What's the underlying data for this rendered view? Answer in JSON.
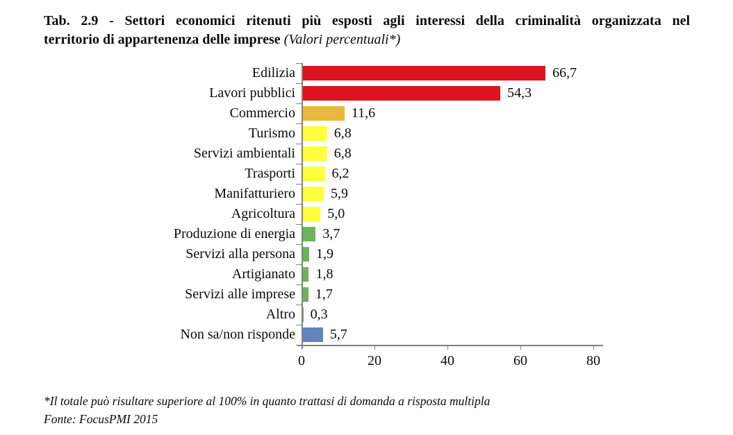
{
  "title": {
    "line1": "Tab. 2.9 - Settori economici ritenuti più esposti agli interessi della criminalità organizzata nel",
    "line2_bold": "territorio di appartenenza delle imprese ",
    "line2_italic": "(Valori percentuali*)"
  },
  "chart_data": {
    "type": "bar",
    "orientation": "horizontal",
    "title": "Settori economici ritenuti più esposti agli interessi della criminalità organizzata nel territorio di appartenenza delle imprese (Valori percentuali*)",
    "xlabel": "",
    "ylabel": "",
    "xlim": [
      0,
      80
    ],
    "x_ticks": [
      0,
      20,
      40,
      60,
      80
    ],
    "grid": false,
    "legend": "none",
    "categories": [
      "Edilizia",
      "Lavori pubblici",
      "Commercio",
      "Turismo",
      "Servizi ambientali",
      "Trasporti",
      "Manifatturiero",
      "Agricoltura",
      "Produzione di energia",
      "Servizi alla persona",
      "Artigianato",
      "Servizi alle imprese",
      "Altro",
      "Non sa/non risponde"
    ],
    "values": [
      66.7,
      54.3,
      11.6,
      6.8,
      6.8,
      6.2,
      5.9,
      5.0,
      3.7,
      1.9,
      1.8,
      1.7,
      0.3,
      5.7
    ],
    "value_labels": [
      "66,7",
      "54,3",
      "11,6",
      "6,8",
      "6,8",
      "6,2",
      "5,9",
      "5,0",
      "3,7",
      "1,9",
      "1,8",
      "1,7",
      "0,3",
      "5,7"
    ],
    "bar_colors": [
      "#dc141e",
      "#dc141e",
      "#e9b93e",
      "#ffff3d",
      "#ffff3d",
      "#ffff3d",
      "#ffff3d",
      "#ffff3d",
      "#6fb35f",
      "#6fb35f",
      "#6fb35f",
      "#6fb35f",
      "#6fb35f",
      "#6283bb"
    ]
  },
  "colors": {
    "red": "#dc141e",
    "gold": "#e9b93e",
    "yellow": "#ffff3d",
    "green": "#6fb35f",
    "blue": "#6283bb",
    "axis": "#808080",
    "text": "#0a0a0a"
  },
  "footnotes": {
    "line1": "*Il totale può risultare superiore al 100% in quanto trattasi di domanda a risposta multipla",
    "line2": "Fonte: FocusPMI 2015"
  }
}
